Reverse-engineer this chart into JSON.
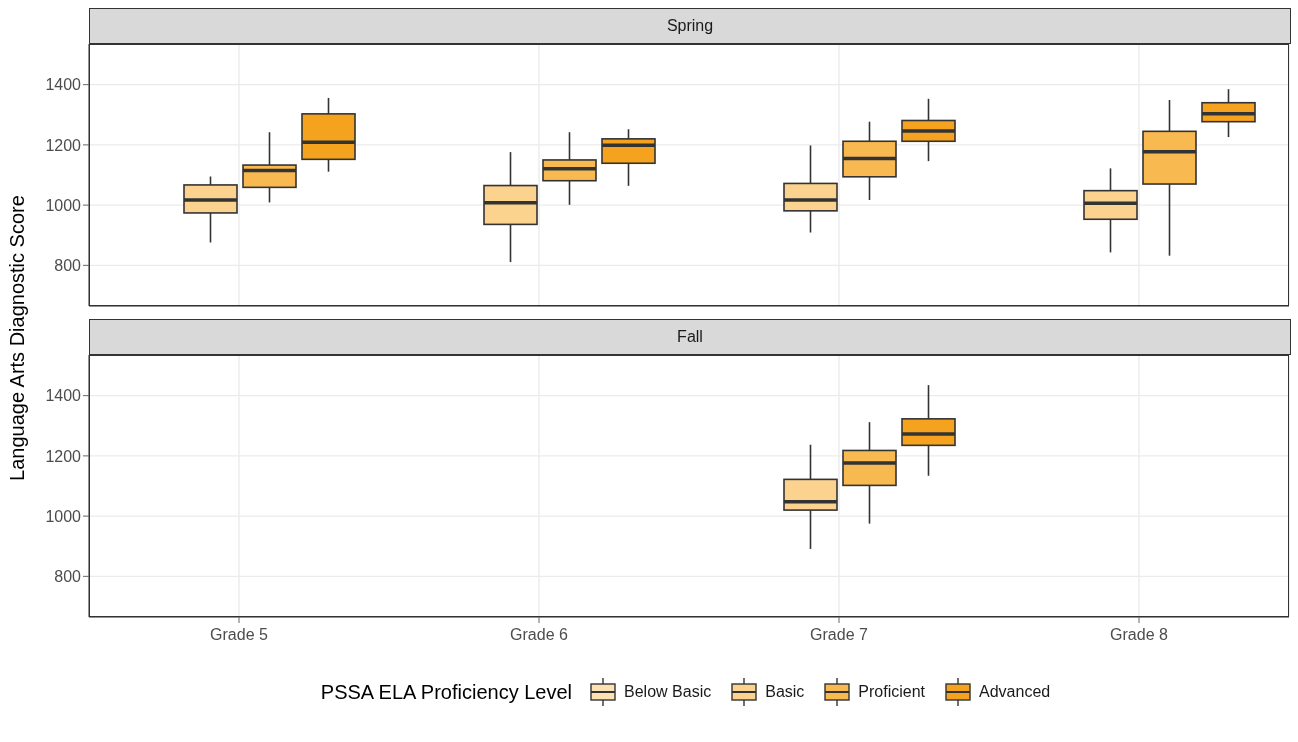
{
  "chart_data": [
    {
      "type": "box",
      "title": "Spring",
      "ylabel": "Language Arts Diagnostic Score",
      "categories": [
        null,
        null,
        null,
        null
      ],
      "ylim": [
        665,
        1535
      ],
      "yticks": [
        800,
        1000,
        1200,
        1400
      ],
      "grid": true,
      "tick_labels": "y",
      "series": [
        {
          "color": "#fde0b3",
          "boxes": [
            null,
            null,
            null,
            null
          ]
        },
        {
          "color": "#fcd28f",
          "boxes": [
            {
              "low": 876,
              "q1": 974,
              "median": 1017,
              "q3": 1067,
              "high": 1095
            },
            {
              "low": 811,
              "q1": 936,
              "median": 1008,
              "q3": 1065,
              "high": 1176
            },
            {
              "low": 909,
              "q1": 981,
              "median": 1017,
              "q3": 1072,
              "high": 1198
            },
            {
              "low": 843,
              "q1": 953,
              "median": 1006,
              "q3": 1048,
              "high": 1122
            }
          ]
        },
        {
          "color": "#f8ba50",
          "boxes": [
            {
              "low": 1009,
              "q1": 1059,
              "median": 1115,
              "q3": 1133,
              "high": 1242
            },
            {
              "low": 1001,
              "q1": 1081,
              "median": 1121,
              "q3": 1150,
              "high": 1242
            },
            {
              "low": 1017,
              "q1": 1094,
              "median": 1155,
              "q3": 1212,
              "high": 1277
            },
            {
              "low": 832,
              "q1": 1070,
              "median": 1177,
              "q3": 1245,
              "high": 1349
            }
          ]
        },
        {
          "color": "#f5a31e",
          "boxes": [
            {
              "low": 1111,
              "q1": 1152,
              "median": 1209,
              "q3": 1303,
              "high": 1356
            },
            {
              "low": 1064,
              "q1": 1139,
              "median": 1199,
              "q3": 1220,
              "high": 1252
            },
            {
              "low": 1146,
              "q1": 1212,
              "median": 1246,
              "q3": 1281,
              "high": 1353
            },
            {
              "low": 1226,
              "q1": 1277,
              "median": 1303,
              "q3": 1340,
              "high": 1385
            }
          ]
        }
      ]
    },
    {
      "type": "box",
      "title": "Fall",
      "categories": [
        "Grade 5",
        "Grade 6",
        "Grade 7",
        "Grade 8"
      ],
      "ylim": [
        665,
        1535
      ],
      "yticks": [
        800,
        1000,
        1200,
        1400
      ],
      "grid": true,
      "legend": "bottom",
      "legend_title": "PSSA ELA Proficiency Level",
      "series": [
        {
          "name": "Below Basic",
          "color": "#fde0b3",
          "boxes": [
            null,
            null,
            null,
            null
          ]
        },
        {
          "name": "Basic",
          "color": "#fcd28f",
          "boxes": [
            null,
            null,
            {
              "low": 891,
              "q1": 1020,
              "median": 1048,
              "q3": 1122,
              "high": 1237
            },
            null
          ]
        },
        {
          "name": "Proficient",
          "color": "#f8ba50",
          "boxes": [
            null,
            null,
            {
              "low": 975,
              "q1": 1102,
              "median": 1176,
              "q3": 1218,
              "high": 1312
            },
            null
          ]
        },
        {
          "name": "Advanced",
          "color": "#f5a31e",
          "boxes": [
            null,
            null,
            {
              "low": 1134,
              "q1": 1235,
              "median": 1273,
              "q3": 1323,
              "high": 1435
            },
            null
          ]
        }
      ]
    }
  ]
}
